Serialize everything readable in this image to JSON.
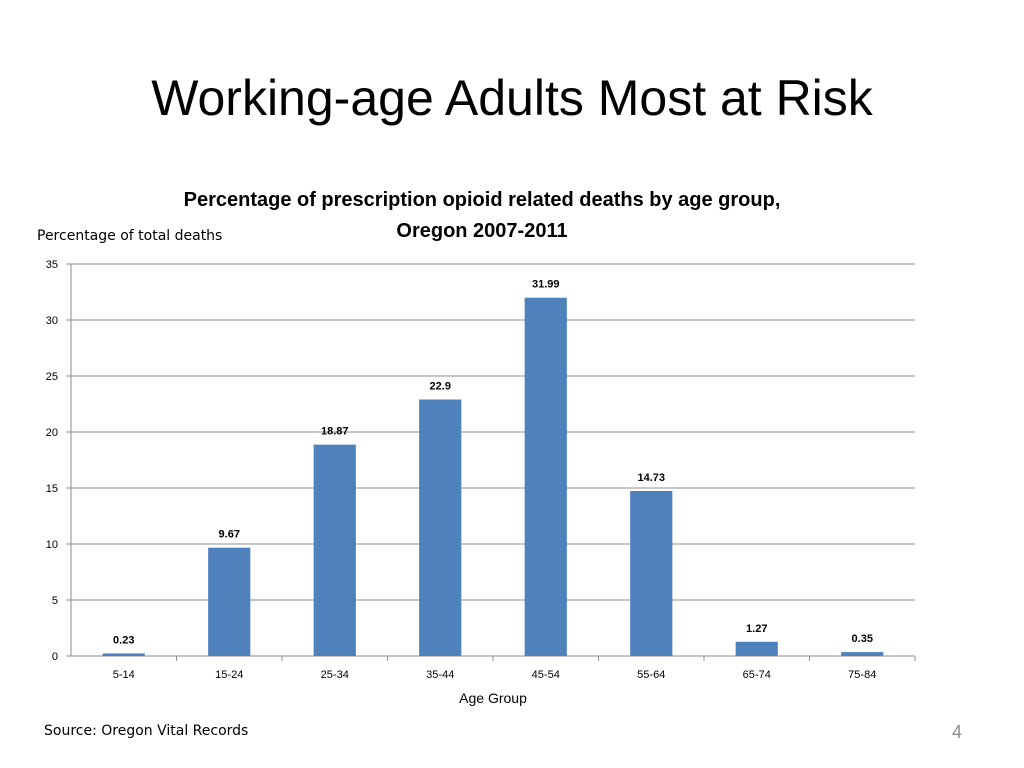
{
  "slide": {
    "title": "Working-age Adults Most at Risk",
    "source": "Source: Oregon Vital Records",
    "page_number": "4"
  },
  "chart_data": {
    "type": "bar",
    "title_line1": "Percentage of prescription opioid related deaths by age group,",
    "title_line2": "Oregon 2007-2011",
    "ylabel": "Percentage of total deaths",
    "xlabel": "Age Group",
    "categories": [
      "5-14",
      "15-24",
      "25-34",
      "35-44",
      "45-54",
      "55-64",
      "65-74",
      "75-84"
    ],
    "values": [
      0.23,
      9.67,
      18.87,
      22.9,
      31.99,
      14.73,
      1.27,
      0.35
    ],
    "data_labels": [
      "0.23",
      "9.67",
      "18.87",
      "22.9",
      "31.99",
      "14.73",
      "1.27",
      "0.35"
    ],
    "yticks": [
      "0",
      "5",
      "10",
      "15",
      "20",
      "25",
      "30",
      "35"
    ],
    "ylim": [
      0,
      35
    ],
    "grid": true,
    "bar_color": "#4f81bd",
    "grid_color": "#8c8c8c"
  }
}
